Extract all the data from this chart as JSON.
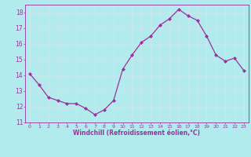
{
  "x": [
    0,
    1,
    2,
    3,
    4,
    5,
    6,
    7,
    8,
    9,
    10,
    11,
    12,
    13,
    14,
    15,
    16,
    17,
    18,
    19,
    20,
    21,
    22,
    23
  ],
  "y": [
    14.1,
    13.4,
    12.6,
    12.4,
    12.2,
    12.2,
    11.9,
    11.5,
    11.8,
    12.4,
    14.4,
    15.3,
    16.1,
    16.5,
    17.2,
    17.6,
    18.2,
    17.8,
    17.5,
    16.5,
    15.3,
    14.9,
    15.1,
    14.3
  ],
  "line_color": "#993399",
  "marker": "D",
  "markersize": 2.0,
  "linewidth": 0.9,
  "xlabel": "Windchill (Refroidissement éolien,°C)",
  "xlabel_color": "#993399",
  "background_color": "#b2ebee",
  "grid_color": "#c8e8eb",
  "ylim": [
    11,
    18.5
  ],
  "xlim": [
    -0.5,
    23.5
  ],
  "yticks": [
    11,
    12,
    13,
    14,
    15,
    16,
    17,
    18
  ],
  "xticks": [
    0,
    1,
    2,
    3,
    4,
    5,
    6,
    7,
    8,
    9,
    10,
    11,
    12,
    13,
    14,
    15,
    16,
    17,
    18,
    19,
    20,
    21,
    22,
    23
  ],
  "tick_color": "#993399",
  "spine_color": "#993399",
  "ytick_fontsize": 5.5,
  "xtick_fontsize": 4.5,
  "xlabel_fontsize": 5.5
}
